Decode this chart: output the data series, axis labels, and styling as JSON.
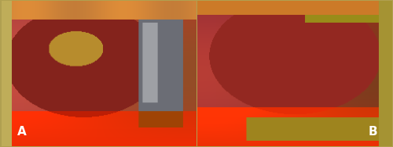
{
  "figure_width": 5.0,
  "figure_height": 1.88,
  "dpi": 100,
  "border_color": "#c0c0c0",
  "label_A": "A",
  "label_B": "B",
  "label_fontsize": 11,
  "label_color": "#ffffff",
  "background_color": "#b0a050"
}
